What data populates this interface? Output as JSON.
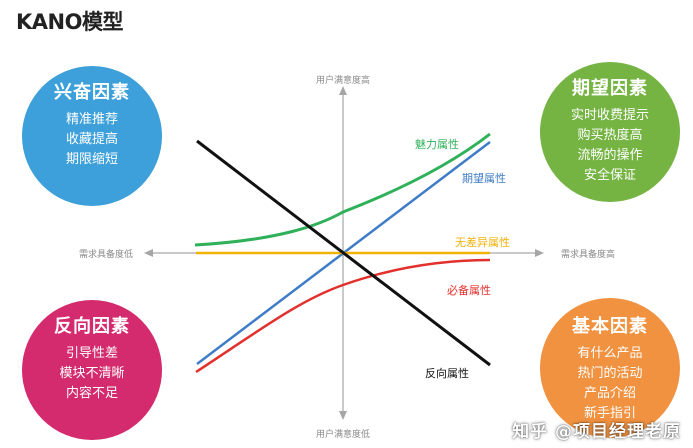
{
  "title": "KANO模型",
  "axes": {
    "y_top": "用户满意度高",
    "y_bottom": "用户满意度低",
    "x_left": "需求具备度低",
    "x_right": "需求具备度高"
  },
  "curves": {
    "attractive": {
      "label": "魅力属性",
      "color": "#2fb15a"
    },
    "performance": {
      "label": "期望属性",
      "color": "#3f7cc7"
    },
    "indifferent": {
      "label": "无差异属性",
      "color": "#f2b20a"
    },
    "must_be": {
      "label": "必备属性",
      "color": "#e2302c"
    },
    "reverse": {
      "label": "反向属性",
      "color": "#111111"
    }
  },
  "quadrants": {
    "excitement": {
      "title": "兴奋因素",
      "items": [
        "精准推荐",
        "收藏提高",
        "期限缩短"
      ],
      "color": "#3ea0da"
    },
    "performance": {
      "title": "期望因素",
      "items": [
        "实时收费提示",
        "购买热度高",
        "流畅的操作",
        "安全保证"
      ],
      "color": "#75b443"
    },
    "reverse": {
      "title": "反向因素",
      "items": [
        "引导性差",
        "模块不清晰",
        "内容不足"
      ],
      "color": "#d42a6e"
    },
    "basic": {
      "title": "基本因素",
      "items": [
        "有什么产品",
        "热门的活动",
        "产品介绍",
        "新手指引"
      ],
      "color": "#f09240"
    }
  },
  "watermark": "知乎 @项目经理老原"
}
